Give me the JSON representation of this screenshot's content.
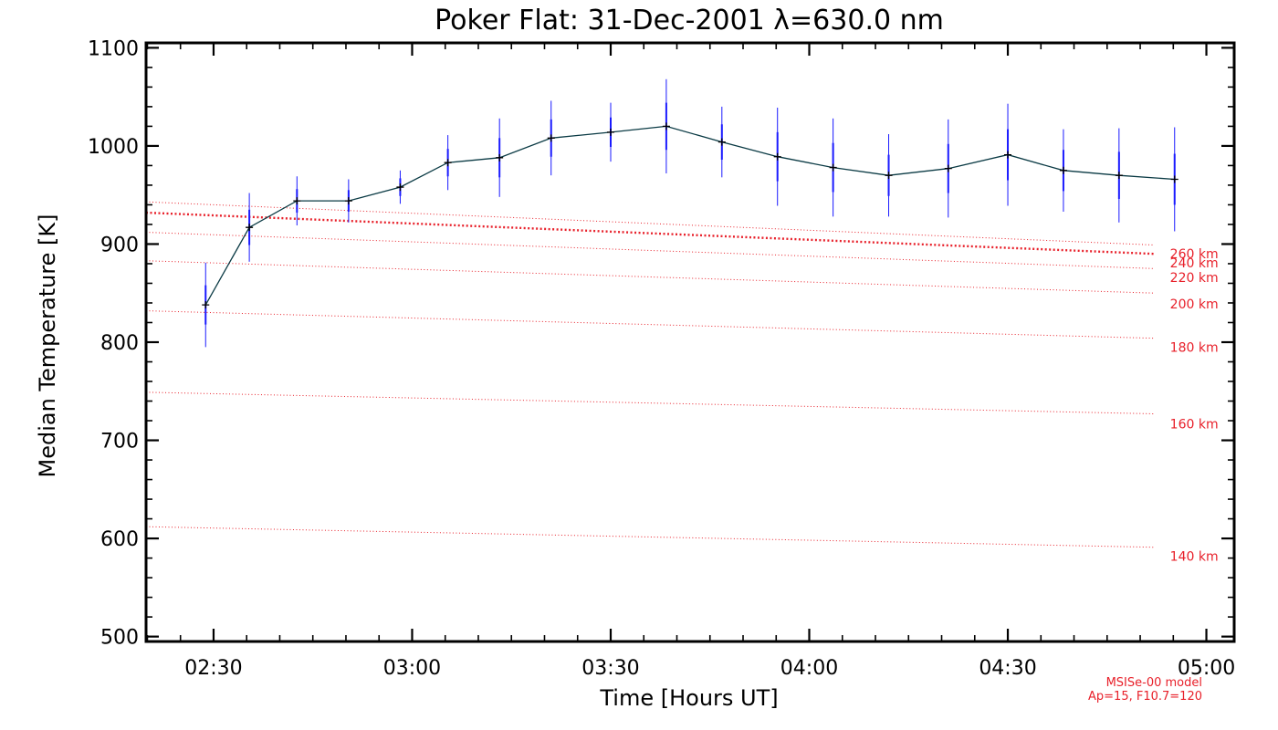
{
  "chart_data": {
    "type": "line",
    "title": "Poker Flat: 31-Dec-2001 λ=630.0 nm",
    "xlabel": "Time [Hours UT]",
    "ylabel": "Median Temperature [K]",
    "xlim": [
      2.33,
      5.07
    ],
    "ylim": [
      495,
      1105
    ],
    "xticks": [
      {
        "value": 2.5,
        "label": "02:30"
      },
      {
        "value": 3.0,
        "label": "03:00"
      },
      {
        "value": 3.5,
        "label": "03:30"
      },
      {
        "value": 4.0,
        "label": "04:00"
      },
      {
        "value": 4.5,
        "label": "04:30"
      },
      {
        "value": 5.0,
        "label": "05:00"
      }
    ],
    "yticks": [
      500,
      600,
      700,
      800,
      900,
      1000,
      1100
    ],
    "series": [
      {
        "name": "Median Temperature",
        "color": "#0a3a44",
        "error_color": "#1a1aff",
        "x": [
          2.48,
          2.59,
          2.71,
          2.84,
          2.97,
          3.09,
          3.22,
          3.35,
          3.5,
          3.64,
          3.78,
          3.92,
          4.06,
          4.2,
          4.35,
          4.5,
          4.64,
          4.78,
          4.92
        ],
        "y": [
          838,
          917,
          944,
          944,
          958,
          983,
          988,
          1008,
          1014,
          1020,
          1004,
          989,
          978,
          970,
          977,
          991,
          975,
          970,
          966
        ],
        "err": [
          43,
          35,
          25,
          22,
          17,
          28,
          40,
          38,
          30,
          48,
          36,
          50,
          50,
          42,
          50,
          52,
          42,
          48,
          53
        ],
        "inner_err": [
          20,
          18,
          12,
          11,
          9,
          14,
          20,
          19,
          15,
          24,
          18,
          25,
          25,
          21,
          25,
          26,
          21,
          24,
          26
        ]
      }
    ],
    "model_lines": [
      {
        "label": "140 km",
        "y_start": 612,
        "y_end": 591,
        "label_value": 582,
        "emphasis": false
      },
      {
        "label": "160 km",
        "y_start": 749,
        "y_end": 727,
        "label_value": 717,
        "emphasis": false
      },
      {
        "label": "180 km",
        "y_start": 832,
        "y_end": 804,
        "label_value": 795,
        "emphasis": false
      },
      {
        "label": "200 km",
        "y_start": 883,
        "y_end": 850,
        "label_value": 839,
        "emphasis": false
      },
      {
        "label": "220 km",
        "y_start": 912,
        "y_end": 875,
        "label_value": 866,
        "emphasis": false
      },
      {
        "label": "240 km",
        "y_start": 932,
        "y_end": 890,
        "label_value": 881,
        "emphasis": true
      },
      {
        "label": "260 km",
        "y_start": 943,
        "y_end": 899,
        "label_value": 890,
        "emphasis": false
      }
    ],
    "model_x_start": 2.33,
    "model_x_end": 4.87,
    "model_label_x": 5.03,
    "model_color": "#e8202a",
    "annotation": {
      "line1": "MSISe-00 model",
      "line2": "Ap=15, F10.7=120"
    }
  }
}
